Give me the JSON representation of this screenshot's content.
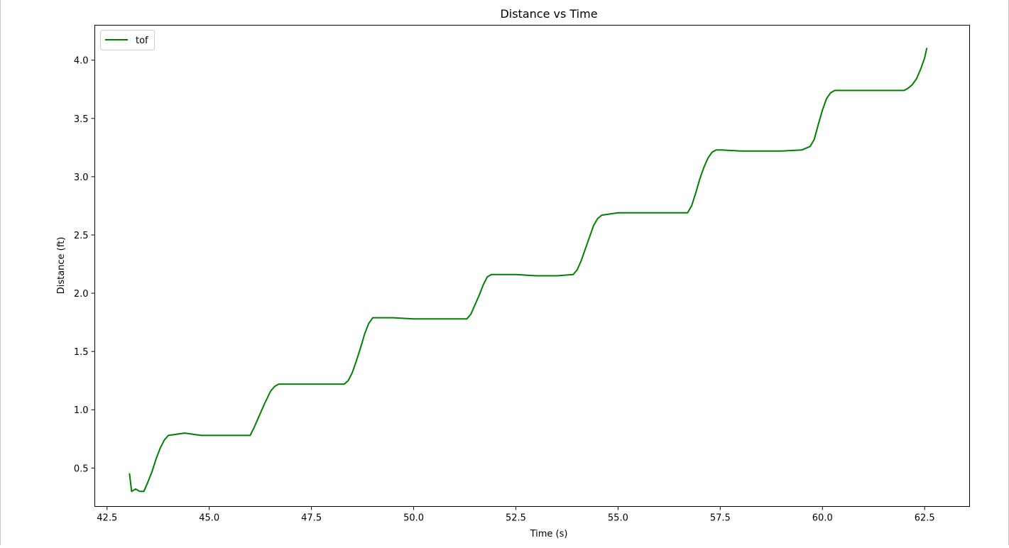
{
  "chart_data": {
    "type": "line",
    "title": "Distance vs Time",
    "xlabel": "Time (s)",
    "ylabel": "Distance (ft)",
    "xlim": [
      42.2,
      63.6
    ],
    "ylim": [
      0.17,
      4.3
    ],
    "xticks": [
      42.5,
      45.0,
      47.5,
      50.0,
      52.5,
      55.0,
      57.5,
      60.0,
      62.5
    ],
    "xtick_labels": [
      "42.5",
      "45.0",
      "47.5",
      "50.0",
      "52.5",
      "55.0",
      "57.5",
      "60.0",
      "62.5"
    ],
    "yticks": [
      0.5,
      1.0,
      1.5,
      2.0,
      2.5,
      3.0,
      3.5,
      4.0
    ],
    "ytick_labels": [
      "0.5",
      "1.0",
      "1.5",
      "2.0",
      "2.5",
      "3.0",
      "3.5",
      "4.0"
    ],
    "grid": false,
    "legend_position": "upper-left",
    "series": [
      {
        "name": "tof",
        "color": "#008000",
        "x": [
          43.05,
          43.1,
          43.2,
          43.3,
          43.4,
          43.5,
          43.6,
          43.7,
          43.8,
          43.9,
          44.0,
          44.2,
          44.4,
          44.6,
          44.8,
          45.0,
          45.3,
          45.6,
          45.9,
          46.0,
          46.1,
          46.2,
          46.35,
          46.5,
          46.6,
          46.7,
          47.0,
          47.3,
          47.6,
          48.0,
          48.3,
          48.4,
          48.5,
          48.6,
          48.7,
          48.8,
          48.9,
          49.0,
          49.1,
          49.5,
          50.0,
          50.5,
          51.0,
          51.3,
          51.4,
          51.5,
          51.6,
          51.7,
          51.8,
          51.9,
          52.0,
          52.5,
          53.0,
          53.5,
          53.9,
          54.0,
          54.1,
          54.2,
          54.3,
          54.4,
          54.5,
          54.6,
          55.0,
          55.5,
          56.0,
          56.5,
          56.7,
          56.8,
          56.9,
          57.0,
          57.1,
          57.2,
          57.3,
          57.4,
          57.5,
          58.0,
          58.5,
          59.0,
          59.5,
          59.7,
          59.8,
          59.9,
          60.0,
          60.1,
          60.2,
          60.3,
          60.5,
          61.0,
          61.5,
          62.0,
          62.1,
          62.2,
          62.3,
          62.4,
          62.5,
          62.55
        ],
        "y": [
          0.45,
          0.3,
          0.32,
          0.3,
          0.3,
          0.38,
          0.47,
          0.58,
          0.67,
          0.74,
          0.78,
          0.79,
          0.8,
          0.79,
          0.78,
          0.78,
          0.78,
          0.78,
          0.78,
          0.78,
          0.85,
          0.93,
          1.05,
          1.16,
          1.2,
          1.22,
          1.22,
          1.22,
          1.22,
          1.22,
          1.22,
          1.25,
          1.32,
          1.42,
          1.53,
          1.65,
          1.74,
          1.79,
          1.79,
          1.79,
          1.78,
          1.78,
          1.78,
          1.78,
          1.82,
          1.9,
          1.98,
          2.07,
          2.14,
          2.16,
          2.16,
          2.16,
          2.15,
          2.15,
          2.16,
          2.2,
          2.28,
          2.38,
          2.48,
          2.58,
          2.64,
          2.67,
          2.69,
          2.69,
          2.69,
          2.69,
          2.69,
          2.75,
          2.86,
          2.98,
          3.08,
          3.16,
          3.21,
          3.23,
          3.23,
          3.22,
          3.22,
          3.22,
          3.23,
          3.26,
          3.32,
          3.45,
          3.57,
          3.67,
          3.72,
          3.74,
          3.74,
          3.74,
          3.74,
          3.74,
          3.76,
          3.79,
          3.84,
          3.92,
          4.02,
          4.1
        ]
      }
    ]
  }
}
